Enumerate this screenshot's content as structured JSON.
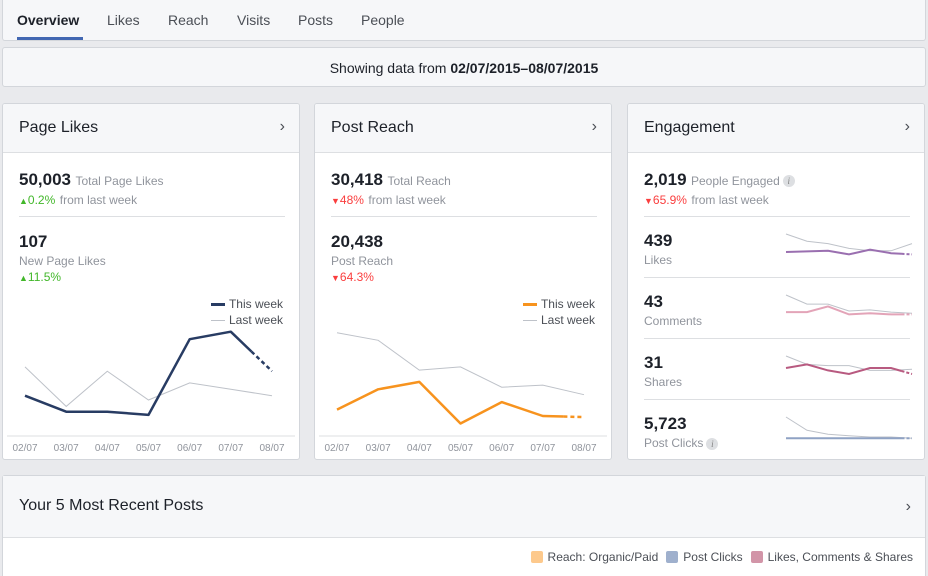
{
  "tabs": [
    {
      "label": "Overview",
      "active": true
    },
    {
      "label": "Likes",
      "active": false
    },
    {
      "label": "Reach",
      "active": false
    },
    {
      "label": "Visits",
      "active": false
    },
    {
      "label": "Posts",
      "active": false
    },
    {
      "label": "People",
      "active": false
    }
  ],
  "date_range": {
    "prefix": "Showing data from",
    "range": "02/07/2015–08/07/2015"
  },
  "colors": {
    "accent": "#4267b2",
    "page_likes_this_week": "#283c63",
    "post_reach_this_week": "#f7931e",
    "last_week": "#bec2c9",
    "up": "#42b72a",
    "down": "#fa3e3e",
    "likes_spark": "#9a6fb0",
    "comments_spark": "#e3a4b8",
    "shares_spark": "#b85a80",
    "clicks_spark": "#8fa2c4"
  },
  "page_likes": {
    "title": "Page Likes",
    "total_value": "50,003",
    "total_label": "Total Page Likes",
    "total_change": "0.2%",
    "total_change_suffix": "from last week",
    "total_change_dir": "up",
    "new_value": "107",
    "new_label": "New Page Likes",
    "new_change": "11.5%",
    "new_change_dir": "up",
    "legend_this": "This week",
    "legend_last": "Last week"
  },
  "post_reach": {
    "title": "Post Reach",
    "total_value": "30,418",
    "total_label": "Total Reach",
    "total_change": "48%",
    "total_change_suffix": "from last week",
    "total_change_dir": "down",
    "new_value": "20,438",
    "new_label": "Post Reach",
    "new_change": "64.3%",
    "new_change_dir": "down",
    "legend_this": "This week",
    "legend_last": "Last week"
  },
  "engagement": {
    "title": "Engagement",
    "total_value": "2,019",
    "total_label": "People Engaged",
    "total_change": "65.9%",
    "total_change_suffix": "from last week",
    "total_change_dir": "down",
    "rows": [
      {
        "value": "439",
        "label": "Likes",
        "info": false
      },
      {
        "value": "43",
        "label": "Comments",
        "info": false
      },
      {
        "value": "31",
        "label": "Shares",
        "info": false
      },
      {
        "value": "5,723",
        "label": "Post Clicks",
        "info": true
      }
    ]
  },
  "chart_data": [
    {
      "type": "line",
      "title": "Page Likes",
      "categories": [
        "02/07",
        "03/07",
        "04/07",
        "05/07",
        "06/07",
        "07/07",
        "08/07"
      ],
      "series": [
        {
          "name": "This week",
          "values": [
            34,
            19,
            19,
            16,
            87,
            94,
            57
          ],
          "partial_last": true
        },
        {
          "name": "Last week",
          "values": [
            61,
            24,
            57,
            30,
            46,
            40,
            34
          ]
        }
      ],
      "ylim": [
        0,
        120
      ],
      "legend": "top-right",
      "grid": false
    },
    {
      "type": "line",
      "title": "Post Reach",
      "categories": [
        "02/07",
        "03/07",
        "04/07",
        "05/07",
        "06/07",
        "07/07",
        "08/07"
      ],
      "series": [
        {
          "name": "This week",
          "values": [
            21,
            40,
            47,
            8,
            28,
            15,
            14
          ],
          "partial_last": true
        },
        {
          "name": "Last week",
          "values": [
            93,
            86,
            58,
            61,
            42,
            44,
            35
          ]
        }
      ],
      "ylim": [
        0,
        120
      ],
      "legend": "top-right",
      "grid": false
    },
    {
      "type": "line",
      "title": "Likes sparkline",
      "series": [
        {
          "name": "This week",
          "values": [
            5,
            5.5,
            6,
            3,
            7,
            4,
            3
          ]
        },
        {
          "name": "Last week",
          "values": [
            20,
            14,
            12,
            8,
            6,
            6,
            12
          ]
        }
      ]
    },
    {
      "type": "line",
      "title": "Comments sparkline",
      "series": [
        {
          "name": "This week",
          "values": [
            6,
            6,
            11,
            4,
            5,
            4,
            4
          ]
        },
        {
          "name": "Last week",
          "values": [
            21,
            13,
            13,
            7,
            8,
            6,
            5
          ]
        }
      ]
    },
    {
      "type": "line",
      "title": "Shares sparkline",
      "series": [
        {
          "name": "This week",
          "values": [
            10,
            13,
            8,
            5,
            10,
            10,
            5
          ]
        },
        {
          "name": "Last week",
          "values": [
            20,
            13,
            12,
            12,
            8,
            8,
            9
          ]
        }
      ]
    },
    {
      "type": "line",
      "title": "Post Clicks sparkline",
      "series": [
        {
          "name": "This week",
          "values": [
            2,
            2,
            2,
            2,
            2,
            2,
            2
          ]
        },
        {
          "name": "Last week",
          "values": [
            18,
            8,
            5,
            4,
            3,
            3,
            2
          ]
        }
      ]
    }
  ],
  "recent_posts": {
    "title": "Your 5 Most Recent Posts",
    "legend": [
      {
        "label": "Reach: Organic/Paid",
        "color": "#fdc98c"
      },
      {
        "label": "Post Clicks",
        "color": "#9fb0cd"
      },
      {
        "label": "Likes, Comments & Shares",
        "color": "#d295a8"
      }
    ]
  }
}
